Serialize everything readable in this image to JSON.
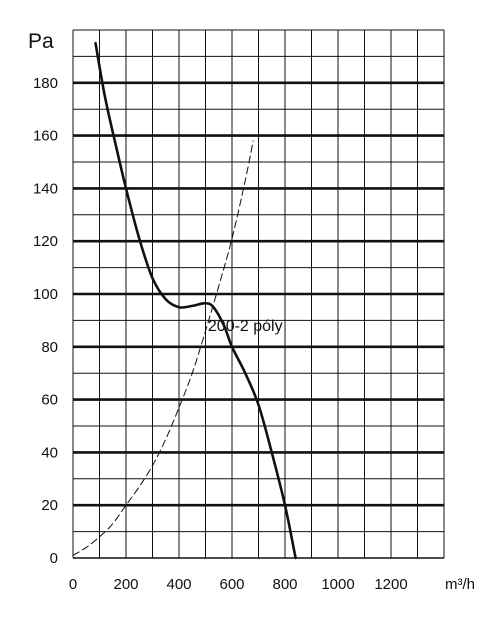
{
  "chart_data": {
    "type": "line",
    "ylabel": "Pa",
    "xlabel": "m³/h",
    "xlim": [
      0,
      1400
    ],
    "ylim": [
      0,
      200
    ],
    "x_ticks": [
      0,
      200,
      400,
      600,
      800,
      1000,
      1200
    ],
    "y_ticks": [
      0,
      20,
      40,
      60,
      80,
      100,
      120,
      140,
      160,
      180
    ],
    "grid": true,
    "series": [
      {
        "name": "200-2 póly",
        "style": "solid",
        "color": "#111111",
        "x": [
          85,
          120,
          160,
          200,
          250,
          300,
          350,
          400,
          450,
          500,
          530,
          570,
          600,
          650,
          700,
          750,
          800,
          840
        ],
        "y": [
          195,
          175,
          157,
          140,
          121,
          106,
          98,
          95,
          95.5,
          96.5,
          95,
          88,
          80,
          70,
          58,
          40,
          20,
          0
        ]
      },
      {
        "name": "",
        "style": "dashed",
        "color": "#111111",
        "x": [
          0,
          50,
          100,
          150,
          200,
          250,
          300,
          350,
          400,
          450,
          500,
          550,
          600,
          650,
          680
        ],
        "y": [
          1,
          4,
          8,
          13,
          20,
          27,
          35,
          45,
          57,
          70,
          86,
          103,
          121,
          143,
          158
        ]
      }
    ],
    "annotations": [
      {
        "text": "200-2 póly",
        "x": 650,
        "y": 86
      }
    ]
  },
  "colors": {
    "grid": "#111111",
    "line": "#111111",
    "background": "#ffffff"
  }
}
